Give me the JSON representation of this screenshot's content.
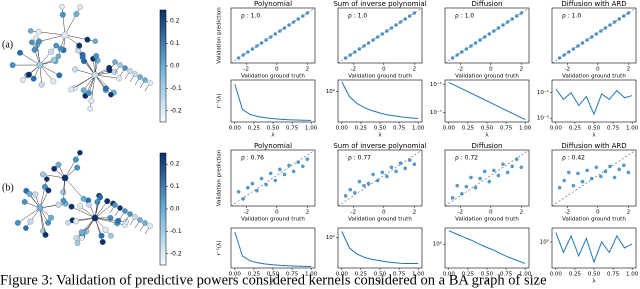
{
  "figure": {
    "rows": [
      {
        "label": "(a)",
        "colorbar_ticks": [
          0.2,
          0.1,
          {
            "value": 0,
            "label": "0.0"
          },
          -0.1,
          -0.2
        ]
      },
      {
        "label": "(b)",
        "colorbar_ticks": [
          0.2,
          0.1,
          {
            "value": 0,
            "label": "0.0"
          },
          -0.1,
          -0.2
        ]
      }
    ],
    "caption": "Figure 3: Validation of predictive powers considered kernels considered on a BA graph of size"
  },
  "chart_data": [
    {
      "type": "scatter",
      "title": "Polynomial",
      "annotation": "ρ : 1.0",
      "xlabel": "Validation ground truth",
      "ylabel": "Validation prediction",
      "color": "#1f77b4",
      "x": [
        -2.5,
        -2.2,
        -1.9,
        -1.6,
        -1.3,
        -1.0,
        -0.7,
        -0.4,
        -0.1,
        0.2,
        0.5,
        0.8,
        1.1,
        1.4,
        1.7,
        2.0
      ],
      "values": [
        -2.5,
        -2.2,
        -1.9,
        -1.6,
        -1.3,
        -1.0,
        -0.7,
        -0.4,
        -0.1,
        0.2,
        0.5,
        0.8,
        1.1,
        1.4,
        1.7,
        2.0
      ],
      "xlim": [
        -3,
        2.5
      ],
      "ylim": [
        -3,
        2.5
      ],
      "xticks": [
        -2,
        0,
        2
      ]
    },
    {
      "type": "scatter",
      "title": "Sum of inverse polynomial",
      "annotation": "ρ : 1.0",
      "xlabel": "Validation ground truth",
      "color": "#1f77b4",
      "x": [
        -2.5,
        -2.2,
        -1.9,
        -1.6,
        -1.3,
        -1.0,
        -0.7,
        -0.4,
        -0.1,
        0.2,
        0.5,
        0.8,
        1.1,
        1.4,
        1.7,
        2.0
      ],
      "values": [
        -2.5,
        -2.2,
        -1.9,
        -1.6,
        -1.3,
        -1.0,
        -0.7,
        -0.4,
        -0.1,
        0.2,
        0.5,
        0.8,
        1.1,
        1.4,
        1.7,
        2.0
      ],
      "xlim": [
        -3,
        2.5
      ],
      "ylim": [
        -3,
        2.5
      ],
      "xticks": [
        -2,
        0,
        2
      ]
    },
    {
      "type": "scatter",
      "title": "Diffusion",
      "annotation": "ρ : 1.0",
      "xlabel": "Validation ground truth",
      "color": "#1f77b4",
      "x": [
        -2.5,
        -2.2,
        -1.9,
        -1.6,
        -1.3,
        -1.0,
        -0.7,
        -0.4,
        -0.1,
        0.2,
        0.5,
        0.8,
        1.1,
        1.4,
        1.7,
        2.0
      ],
      "values": [
        -2.5,
        -2.2,
        -1.9,
        -1.6,
        -1.3,
        -1.0,
        -0.7,
        -0.4,
        -0.1,
        0.2,
        0.5,
        0.8,
        1.1,
        1.4,
        1.7,
        2.0
      ],
      "xlim": [
        -3,
        2.5
      ],
      "ylim": [
        -3,
        2.5
      ],
      "xticks": [
        -2,
        0,
        2
      ]
    },
    {
      "type": "scatter",
      "title": "Diffusion with ARD",
      "annotation": "ρ : 1.0",
      "xlabel": "Validation ground truth",
      "color": "#1f77b4",
      "x": [
        -2.5,
        -2.2,
        -1.9,
        -1.6,
        -1.3,
        -1.0,
        -0.7,
        -0.4,
        -0.1,
        0.2,
        0.5,
        0.8,
        1.1,
        1.4,
        1.7,
        2.0
      ],
      "values": [
        -2.5,
        -2.2,
        -1.9,
        -1.6,
        -1.3,
        -1.0,
        -0.7,
        -0.4,
        -0.1,
        0.2,
        0.5,
        0.8,
        1.1,
        1.4,
        1.7,
        2.0
      ],
      "xlim": [
        -3,
        2.5
      ],
      "ylim": [
        -3,
        2.5
      ],
      "xticks": [
        -2,
        0,
        2
      ]
    },
    {
      "type": "line",
      "xlabel": "λ",
      "ylabel": "r⁻¹(λ)",
      "color": "#1f77b4",
      "log_y": false,
      "x": [
        0,
        0.1,
        0.2,
        0.3,
        0.4,
        0.5,
        0.6,
        0.7,
        0.8,
        0.9,
        1
      ],
      "values": [
        9,
        3,
        1.8,
        1.3,
        1,
        0.8,
        0.65,
        0.55,
        0.48,
        0.42,
        0.38
      ],
      "xlim": [
        -0.05,
        1.05
      ],
      "ylim": [
        0,
        10
      ],
      "xticks": [
        {
          "value": 0,
          "label": "0.00"
        },
        0.25,
        {
          "value": 0.5,
          "label": "0.50"
        },
        0.75,
        {
          "value": 1,
          "label": "1.00"
        }
      ]
    },
    {
      "type": "line",
      "xlabel": "λ",
      "color": "#1f77b4",
      "log_y": true,
      "x": [
        0,
        0.1,
        0.2,
        0.3,
        0.4,
        0.5,
        0.6,
        0.7,
        0.8,
        0.9,
        1
      ],
      "values": [
        2.5,
        0.6,
        0.3,
        0.2,
        0.15,
        0.12,
        0.1,
        0.09,
        0.08,
        0.075,
        0.07
      ],
      "xlim": [
        -0.05,
        1.05
      ],
      "ylim": [
        0.05,
        3
      ],
      "xticks": [
        {
          "value": 0,
          "label": "0.00"
        },
        0.25,
        {
          "value": 0.5,
          "label": "0.50"
        },
        0.75,
        {
          "value": 1,
          "label": "1.00"
        }
      ],
      "yticks": [
        {
          "value": 1,
          "label": "10⁰"
        }
      ]
    },
    {
      "type": "line",
      "xlabel": "λ",
      "color": "#1f77b4",
      "log_y": true,
      "x": [
        0,
        0.1,
        0.2,
        0.3,
        0.4,
        0.5,
        0.6,
        0.7,
        0.8,
        0.9,
        1
      ],
      "values": [
        0.3,
        0.05,
        0.008,
        0.0013,
        0.0002,
        3.3e-05,
        5e-06,
        8e-07,
        1.3e-07,
        2e-08,
        3.3e-09
      ],
      "xlim": [
        -0.05,
        1.05
      ],
      "ylim": [
        1e-09,
        1
      ],
      "xticks": [
        {
          "value": 0,
          "label": "0.00"
        },
        0.25,
        {
          "value": 0.5,
          "label": "0.50"
        },
        0.75,
        {
          "value": 1,
          "label": "1.00"
        }
      ],
      "yticks": [
        {
          "value": 0.1,
          "label": "10⁻¹"
        },
        {
          "value": 1e-07,
          "label": "10⁻⁷"
        }
      ]
    },
    {
      "type": "line",
      "xlabel": "λ",
      "color": "#1f77b4",
      "log_y": true,
      "x": [
        0,
        0.1,
        0.2,
        0.3,
        0.4,
        0.5,
        0.6,
        0.7,
        0.8,
        0.9,
        1
      ],
      "values": [
        0.2,
        0.03,
        0.1,
        0.01,
        0.05,
        0.002,
        0.08,
        0.03,
        0.15,
        0.04,
        0.06
      ],
      "xlim": [
        -0.05,
        1.05
      ],
      "ylim": [
        0.0005,
        1
      ],
      "xticks": [
        {
          "value": 0,
          "label": "0.00"
        },
        0.25,
        {
          "value": 0.5,
          "label": "0.50"
        },
        0.75,
        {
          "value": 1,
          "label": "1.00"
        }
      ],
      "yticks": [
        {
          "value": 0.1,
          "label": "10⁻¹"
        },
        {
          "value": 0.001,
          "label": "10⁻³"
        }
      ]
    },
    {
      "type": "scatter",
      "title": "Polynomial",
      "annotation": "ρ : 0.76",
      "xlabel": "Validation ground truth",
      "ylabel": "Validation prediction",
      "color": "#1f77b4",
      "x": [
        -2.5,
        -2.2,
        -1.9,
        -1.6,
        -1.3,
        -1.0,
        -0.7,
        -0.4,
        -0.1,
        0.2,
        0.5,
        0.8,
        1.1,
        1.4,
        1.7,
        2.0
      ],
      "values": [
        -1.6,
        -2.3,
        -1.2,
        -0.8,
        -1.5,
        -0.3,
        -0.9,
        0.2,
        -0.5,
        0.6,
        0.1,
        1.0,
        0.4,
        1.3,
        0.9,
        1.6
      ],
      "xlim": [
        -3,
        2.5
      ],
      "ylim": [
        -3,
        2.5
      ],
      "xticks": [
        -2,
        0,
        2
      ]
    },
    {
      "type": "scatter",
      "title": "Sum of inverse polynomial",
      "annotation": "ρ : 0.77",
      "xlabel": "Validation ground truth",
      "color": "#1f77b4",
      "x": [
        -2.5,
        -2.2,
        -1.9,
        -1.6,
        -1.3,
        -1.0,
        -0.7,
        -0.4,
        -0.1,
        0.2,
        0.5,
        0.8,
        1.1,
        1.4,
        1.7,
        2.0
      ],
      "values": [
        -2.0,
        -1.4,
        -1.7,
        -0.6,
        -1.0,
        -0.8,
        0.1,
        -0.5,
        0.3,
        -0.1,
        0.8,
        0.4,
        1.2,
        0.7,
        1.5,
        1.1
      ],
      "xlim": [
        -3,
        2.5
      ],
      "ylim": [
        -3,
        2.5
      ],
      "xticks": [
        -2,
        0,
        2
      ]
    },
    {
      "type": "scatter",
      "title": "Diffusion",
      "annotation": "ρ : 0.72",
      "xlabel": "Validation ground truth",
      "color": "#1f77b4",
      "x": [
        -2.5,
        -2.2,
        -1.9,
        -1.6,
        -1.3,
        -1.0,
        -0.7,
        -0.4,
        -0.1,
        0.2,
        0.5,
        0.8,
        1.1,
        1.4,
        1.7,
        2.0
      ],
      "values": [
        -2.2,
        -1.0,
        -1.8,
        -1.1,
        -0.2,
        -1.2,
        -0.3,
        0.4,
        -0.6,
        0.5,
        0.0,
        1.1,
        0.3,
        0.9,
        1.6,
        0.8
      ],
      "xlim": [
        -3,
        2.5
      ],
      "ylim": [
        -3,
        2.5
      ],
      "xticks": [
        -2,
        0,
        2
      ]
    },
    {
      "type": "scatter",
      "title": "Diffusion with ARD",
      "annotation": "ρ : 0.42",
      "xlabel": "Validation ground truth",
      "color": "#1f77b4",
      "x": [
        -2.5,
        -2.2,
        -1.9,
        -1.6,
        -1.3,
        -1.0,
        -0.7,
        -0.4,
        -0.1,
        0.2,
        0.5,
        0.8,
        1.1,
        1.4,
        1.7,
        2.0
      ],
      "values": [
        -1.2,
        -0.5,
        0.3,
        -1.0,
        0.2,
        -0.6,
        0.5,
        -0.3,
        0.8,
        -0.1,
        0.4,
        0.9,
        -0.2,
        0.6,
        1.0,
        0.3
      ],
      "xlim": [
        -3,
        2.5
      ],
      "ylim": [
        -3,
        2.5
      ],
      "xticks": [
        -2,
        0,
        2
      ]
    },
    {
      "type": "line",
      "xlabel": "λ",
      "ylabel": "r⁻¹(λ)",
      "color": "#1f77b4",
      "log_y": false,
      "x": [
        0,
        0.1,
        0.2,
        0.3,
        0.4,
        0.5,
        0.6,
        0.7,
        0.8,
        0.9,
        1
      ],
      "values": [
        9,
        3,
        1.8,
        1.3,
        1,
        0.8,
        0.65,
        0.55,
        0.48,
        0.42,
        0.38
      ],
      "xlim": [
        -0.05,
        1.05
      ],
      "ylim": [
        0,
        10
      ],
      "xticks": [
        {
          "value": 0,
          "label": "0.00"
        },
        0.25,
        {
          "value": 0.5,
          "label": "0.50"
        },
        0.75,
        {
          "value": 1,
          "label": "1.00"
        }
      ]
    },
    {
      "type": "line",
      "xlabel": "λ",
      "color": "#1f77b4",
      "log_y": true,
      "x": [
        0,
        0.1,
        0.2,
        0.3,
        0.4,
        0.5,
        0.6,
        0.7,
        0.8,
        0.9,
        1
      ],
      "values": [
        20,
        3,
        1.5,
        1,
        0.8,
        0.7,
        0.6,
        0.55,
        0.5,
        0.5,
        0.5
      ],
      "xlim": [
        -0.05,
        1.05
      ],
      "ylim": [
        0.3,
        30
      ],
      "xticks": [
        {
          "value": 0,
          "label": "0.00"
        },
        0.25,
        {
          "value": 0.5,
          "label": "0.50"
        },
        0.75,
        {
          "value": 1,
          "label": "1.00"
        }
      ],
      "yticks": [
        {
          "value": 10,
          "label": "10¹"
        }
      ]
    },
    {
      "type": "line",
      "xlabel": "λ",
      "color": "#1f77b4",
      "log_y": true,
      "x": [
        0,
        0.1,
        0.2,
        0.3,
        0.4,
        0.5,
        0.6,
        0.7,
        0.8,
        0.9,
        1
      ],
      "values": [
        2.5,
        2,
        1.6,
        1.3,
        1,
        0.8,
        0.65,
        0.5,
        0.4,
        0.33,
        0.27
      ],
      "xlim": [
        -0.05,
        1.05
      ],
      "ylim": [
        0.2,
        3
      ],
      "xticks": [
        {
          "value": 0,
          "label": "0.00"
        },
        0.25,
        {
          "value": 0.5,
          "label": "0.50"
        },
        0.75,
        {
          "value": 1,
          "label": "1.00"
        }
      ],
      "yticks": [
        {
          "value": 1,
          "label": "10⁰"
        }
      ]
    },
    {
      "type": "line",
      "xlabel": "λ",
      "color": "#1f77b4",
      "log_y": true,
      "x": [
        0,
        0.1,
        0.2,
        0.3,
        0.4,
        0.5,
        0.6,
        0.7,
        0.8,
        0.9,
        1
      ],
      "values": [
        3,
        0.3,
        2,
        0.2,
        1.5,
        0.1,
        1,
        0.3,
        2,
        0.5,
        0.8
      ],
      "xlim": [
        -0.05,
        1.05
      ],
      "ylim": [
        0.05,
        5
      ],
      "xticks": [
        {
          "value": 0,
          "label": "0.00"
        },
        0.25,
        {
          "value": 0.5,
          "label": "0.50"
        },
        0.75,
        {
          "value": 1,
          "label": "1.00"
        }
      ],
      "yticks": [
        {
          "value": 1,
          "label": "10⁰"
        }
      ]
    }
  ]
}
